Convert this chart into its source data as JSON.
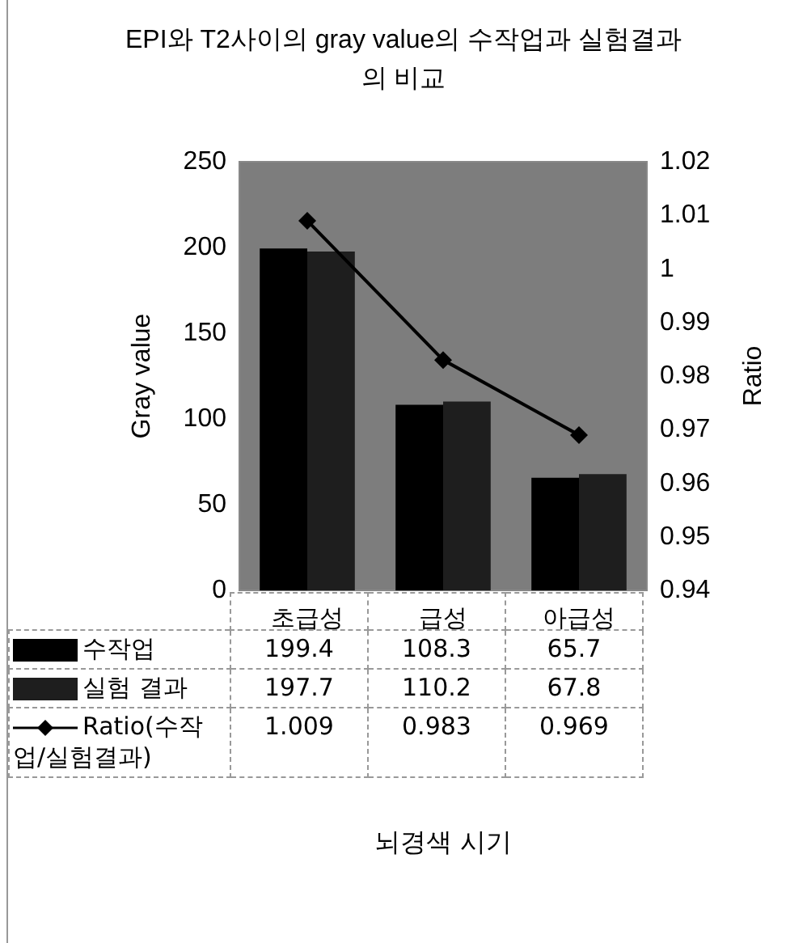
{
  "chart_data": {
    "type": "bar",
    "title": "EPI와 T2사이의 gray value의 수작업과 실험결과의 비교",
    "annotations": [
      "뇌경색 시기"
    ],
    "ylabel": "Gray value",
    "y2label": "Ratio",
    "categories": [
      "초급성",
      "급성",
      "아급성"
    ],
    "series": [
      {
        "name": "수작업",
        "color": "#000000",
        "values": [
          199.4,
          108.3,
          65.7
        ]
      },
      {
        "name": "실험 결과",
        "color": "#1e1e1e",
        "values": [
          197.7,
          110.2,
          67.8
        ]
      },
      {
        "name": "Ratio(수작업/실험결과)",
        "type": "line",
        "axis": "y2",
        "color": "#000000",
        "marker": "diamond",
        "values": [
          1.009,
          0.983,
          0.969
        ]
      }
    ],
    "ylim": [
      0,
      250
    ],
    "yticks": [
      0,
      50,
      100,
      150,
      200,
      250
    ],
    "y2lim": [
      0.94,
      1.02
    ],
    "y2ticks": [
      0.94,
      0.95,
      0.96,
      0.97,
      0.98,
      0.99,
      1,
      1.01,
      1.02
    ],
    "data_labels": true,
    "legend": "bottom",
    "grid": false
  }
}
